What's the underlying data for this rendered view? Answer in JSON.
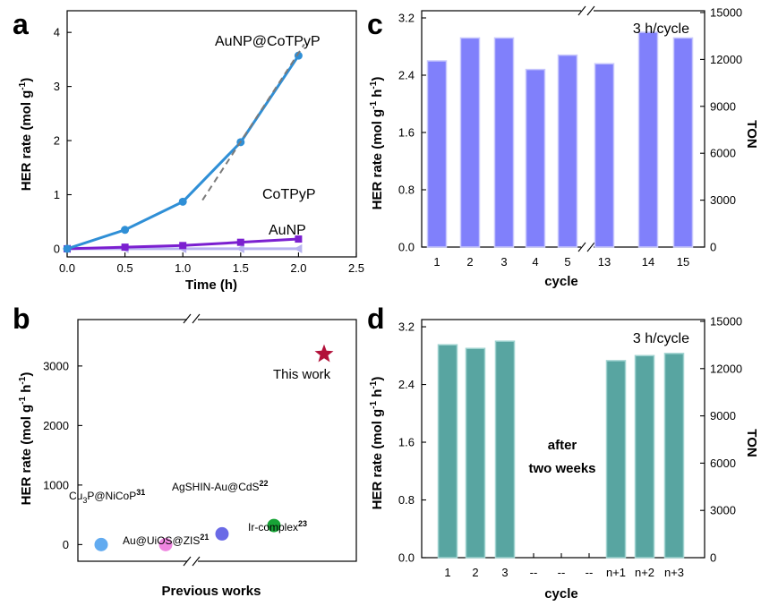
{
  "panels": {
    "a": {
      "letter": "a"
    },
    "b": {
      "letter": "b"
    },
    "c": {
      "letter": "c"
    },
    "d": {
      "letter": "d"
    }
  },
  "chart_data": [
    {
      "id": "a",
      "type": "line",
      "xlabel": "Time (h)",
      "ylabel_main": "HER rate (mol g",
      "ylabel_sup1": "-1",
      "ylabel_mid": " h",
      "ylabel_sup2": "-1",
      "ylabel_end": ")",
      "xlim": [
        0,
        2.5
      ],
      "ylim": [
        -0.15,
        4.4
      ],
      "xticks": [
        "0.0",
        "0.5",
        "1.0",
        "1.5",
        "2.0",
        "2.5"
      ],
      "yticks": [
        "0",
        "1",
        "2",
        "3",
        "4"
      ],
      "series": [
        {
          "name": "AuNP@CoTPyP",
          "color": "#2f8fd6",
          "marker": "circle",
          "x": [
            0,
            0.5,
            1.0,
            1.5,
            2.0
          ],
          "y": [
            0.0,
            0.35,
            0.87,
            1.97,
            3.57
          ]
        },
        {
          "name": "CoTPyP",
          "color": "#7b1fd0",
          "marker": "square",
          "x": [
            0,
            0.5,
            1.0,
            1.5,
            2.0
          ],
          "y": [
            0.0,
            0.03,
            0.06,
            0.12,
            0.18
          ]
        },
        {
          "name": "AuNP",
          "color": "#b7b2f0",
          "marker": "triangle-left",
          "x": [
            0,
            0.5,
            1.0,
            1.5,
            2.0
          ],
          "y": [
            0.0,
            0.0,
            0.0,
            0.0,
            0.0
          ]
        }
      ],
      "fit_line": {
        "color": "#7a7a7a",
        "x": [
          1.17,
          2.05
        ],
        "y": [
          0.9,
          3.78
        ]
      }
    },
    {
      "id": "b",
      "type": "scatter",
      "xlabel": "Previous works",
      "ylabel_main": "HER rate (mol g",
      "ylabel_sup1": "-1",
      "ylabel_mid": " h",
      "ylabel_sup2": "-1",
      "ylabel_end": ")",
      "ylim": [
        -280,
        3780
      ],
      "yticks": [
        "0",
        "1000",
        "2000",
        "3000"
      ],
      "points": [
        {
          "label": "Cu",
          "label_sub": "3",
          "label_rest": "P@NiCoP",
          "label_sup": "31",
          "value": 0,
          "color": "#62abf0",
          "marker": "circle"
        },
        {
          "label": "Au@UiOS@ZIS",
          "label_sup": "21",
          "value": 0,
          "color": "#ef86e0",
          "marker": "circle"
        },
        {
          "label": "AgSHIN-Au@CdS",
          "label_sup": "22",
          "value": 180,
          "color": "#6a6ae6",
          "marker": "circle"
        },
        {
          "label": "Ir-complex",
          "label_sup": "23",
          "value": 320,
          "color": "#17a336",
          "marker": "circle"
        },
        {
          "label": "This work",
          "value": 3200,
          "color": "#b2113a",
          "marker": "star"
        }
      ]
    },
    {
      "id": "c",
      "type": "bar",
      "xlabel": "cycle",
      "ylabel_main": "HER rate (mol g",
      "ylabel_sup1": "-1",
      "ylabel_mid": " h",
      "ylabel_sup2": "-1",
      "ylabel_end": ")",
      "y2label": "TON",
      "ylim": [
        0,
        3.3
      ],
      "yticks": [
        "0.0",
        "0.8",
        "1.6",
        "2.4",
        "3.2"
      ],
      "y2ticks": [
        "0",
        "3000",
        "6000",
        "9000",
        "12000",
        "15000"
      ],
      "annotation": "3 h/cycle",
      "categories": [
        "1",
        "2",
        "3",
        "4",
        "5",
        "13",
        "14",
        "15"
      ],
      "values": [
        2.6,
        2.92,
        2.92,
        2.48,
        2.68,
        2.56,
        3.0,
        2.92
      ],
      "bar_color": "#8080fb",
      "bar_edge": "#c8c8fc"
    },
    {
      "id": "d",
      "type": "bar",
      "xlabel": "cycle",
      "ylabel_main": "HER rate (mol g",
      "ylabel_sup1": "-1",
      "ylabel_mid": " h",
      "ylabel_sup2": "-1",
      "ylabel_end": ")",
      "y2label": "TON",
      "ylim": [
        0,
        3.3
      ],
      "yticks": [
        "0.0",
        "0.8",
        "1.6",
        "2.4",
        "3.2"
      ],
      "y2ticks": [
        "0",
        "3000",
        "6000",
        "9000",
        "12000",
        "15000"
      ],
      "annotation": "3 h/cycle",
      "center_text_1": "after",
      "center_text_2": "two weeks",
      "categories": [
        "1",
        "2",
        "3",
        "--",
        "--",
        "--",
        "n+1",
        "n+2",
        "n+3"
      ],
      "values": [
        2.95,
        2.9,
        3.0,
        null,
        null,
        null,
        2.73,
        2.8,
        2.83
      ],
      "bar_color": "#58a5a1",
      "bar_edge": "#9ed2cf"
    }
  ]
}
